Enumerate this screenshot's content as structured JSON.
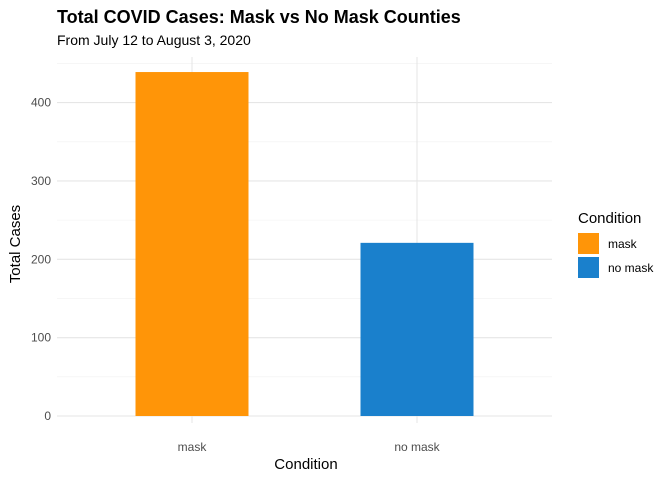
{
  "chart_data": {
    "type": "bar",
    "title": "Total COVID Cases: Mask vs No Mask Counties",
    "subtitle": "From July 12 to August 3, 2020",
    "xlabel": "Condition",
    "ylabel": "Total Cases",
    "categories": [
      "mask",
      "no mask"
    ],
    "values": [
      439,
      221
    ],
    "colors": [
      "#FF9508",
      "#1A80CC"
    ],
    "ylim": [
      0,
      450
    ],
    "yticks": [
      0,
      100,
      200,
      300,
      400
    ],
    "grid": true,
    "legend": {
      "title": "Condition",
      "position": "right",
      "entries": [
        {
          "label": "mask",
          "color": "#FF9508"
        },
        {
          "label": "no mask",
          "color": "#1A80CC"
        }
      ]
    }
  }
}
